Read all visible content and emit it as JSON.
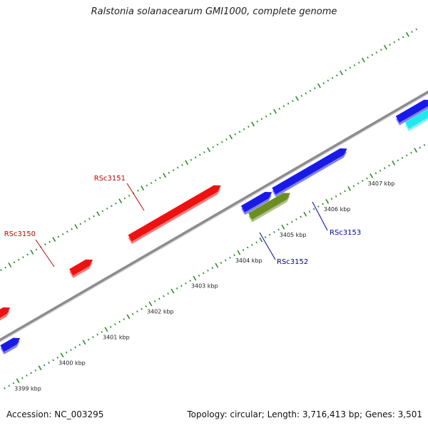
{
  "title": "Ralstonia solanacearum GMI1000, complete genome",
  "footer": {
    "accession": "Accession: NC_003295",
    "summary": "Topology: circular; Length: 3,716,413 bp; Genes: 3,501"
  },
  "colors": {
    "backbone": "#8c8c8c",
    "tick": "#2e8b2e",
    "red_gene": "#ee1111",
    "blue_gene": "#1a1ae6",
    "green_gene": "#6b8e23",
    "cyan_gene": "#22e8ee",
    "label_red": "#cc0000",
    "label_blue": "#0000aa"
  },
  "scale": {
    "unit": "kbp",
    "labels": [
      "3399 kbp",
      "3400 kbp",
      "3401 kbp",
      "3402 kbp",
      "3403 kbp",
      "3404 kbp",
      "3405 kbp",
      "3406 kbp",
      "3407 kbp"
    ]
  },
  "genes": [
    {
      "id": "gene-1",
      "label": "",
      "color": "red_gene",
      "strand": "forward",
      "start_kbp": 3399.3,
      "end_kbp": 3399.58
    },
    {
      "id": "gene-2",
      "label": "RSc3150",
      "color": "red_gene",
      "strand": "forward",
      "start_kbp": 3400.97,
      "end_kbp": 3401.45
    },
    {
      "id": "gene-3",
      "label": "RSc3151",
      "color": "red_gene",
      "strand": "forward",
      "start_kbp": 3402.3,
      "end_kbp": 3404.35
    },
    {
      "id": "gene-4",
      "label": "",
      "color": "blue_gene",
      "strand": "reverse",
      "start_kbp": 3399.05,
      "end_kbp": 3399.45
    },
    {
      "id": "gene-5",
      "label": "",
      "color": "blue_gene",
      "strand": "reverse",
      "start_kbp": 3404.5,
      "end_kbp": 3405.15
    },
    {
      "id": "gene-6",
      "label": "RSc3153",
      "color": "blue_gene",
      "strand": "reverse",
      "start_kbp": 3405.2,
      "end_kbp": 3406.85
    },
    {
      "id": "gene-7",
      "label": "",
      "color": "blue_gene",
      "strand": "reverse",
      "start_kbp": 3408.0,
      "end_kbp": 3408.75
    },
    {
      "id": "gene-8",
      "label": "RSc3152",
      "color": "green_gene",
      "strand": "reverse",
      "start_kbp": 3404.55,
      "end_kbp": 3405.45
    },
    {
      "id": "gene-9",
      "label": "",
      "color": "cyan_gene",
      "strand": "reverse",
      "start_kbp": 3408.1,
      "end_kbp": 3408.8
    }
  ]
}
